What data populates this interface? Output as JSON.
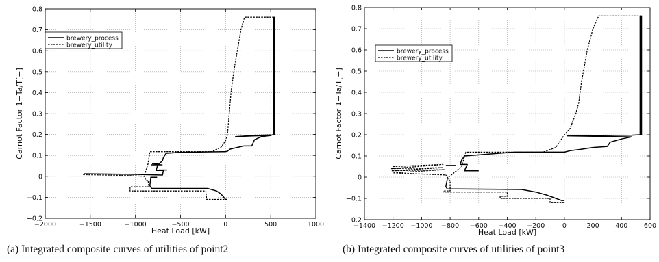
{
  "chart_data": [
    {
      "type": "line",
      "caption": "(a) Integrated composite curves of utilities of point2",
      "xlabel": "Heat Load [kW]",
      "ylabel": "Carnot Factor 1−Ta/T[−]",
      "xlim": [
        -2000,
        1000
      ],
      "ylim": [
        -0.2,
        0.8
      ],
      "xticks": [
        -2000,
        -1500,
        -1000,
        -500,
        0,
        500,
        1000
      ],
      "xtick_labels": [
        "−2000",
        "−1500",
        "−1000",
        "−500",
        "0",
        "500",
        "1000"
      ],
      "yticks": [
        -0.2,
        -0.1,
        0,
        0.1,
        0.2,
        0.3,
        0.4,
        0.5,
        0.6,
        0.7,
        0.8
      ],
      "ytick_labels": [
        "−0.2",
        "−0.1",
        "0",
        "0.1",
        "0.2",
        "0.3",
        "0.4",
        "0.5",
        "0.6",
        "0.7",
        "0.8"
      ],
      "grid": true,
      "legend_position": "upper-left",
      "series": [
        {
          "name": "brewery_process",
          "style": "solid",
          "points": [
            [
              -1570,
              0.012
            ],
            [
              -1000,
              0.009
            ],
            [
              -700,
              0.006
            ],
            [
              -690,
              0.028
            ],
            [
              -770,
              0.028
            ],
            [
              -750,
              0.06
            ],
            [
              -810,
              0.06
            ],
            [
              -740,
              0.058
            ],
            [
              -700,
              0.075
            ],
            [
              -690,
              0.09
            ],
            [
              -660,
              0.11
            ],
            [
              -500,
              0.115
            ],
            [
              -30,
              0.118
            ],
            [
              0,
              0.118
            ],
            [
              20,
              0.12
            ],
            [
              50,
              0.13
            ],
            [
              200,
              0.145
            ],
            [
              290,
              0.145
            ],
            [
              320,
              0.175
            ],
            [
              400,
              0.19
            ],
            [
              500,
              0.195
            ],
            [
              530,
              0.2
            ],
            [
              540,
              0.2
            ],
            [
              540,
              0.76
            ],
            [
              530,
              0.76
            ],
            [
              530,
              0.2
            ],
            [
              500,
              0.195
            ],
            [
              300,
              0.193
            ],
            [
              110,
              0.19
            ],
            [
              300,
              0.195
            ],
            [
              500,
              0.198
            ]
          ],
          "extra_segments": [
            [
              [
                -700,
                0.055
              ],
              [
                -830,
                0.055
              ]
            ],
            [
              [
                -650,
                0.03
              ],
              [
                -740,
                0.03
              ]
            ],
            [
              [
                -760,
                -0.005
              ],
              [
                -830,
                -0.005
              ],
              [
                -840,
                -0.045
              ],
              [
                -820,
                -0.058
              ],
              [
                -200,
                -0.058
              ],
              [
                -100,
                -0.07
              ],
              [
                -50,
                -0.085
              ],
              [
                -20,
                -0.1
              ],
              [
                0,
                -0.11
              ],
              [
                20,
                -0.11
              ]
            ]
          ]
        },
        {
          "name": "brewery_utility",
          "style": "dashed",
          "points": [
            [
              -1580,
              0.008
            ],
            [
              -1100,
              0.004
            ],
            [
              -900,
              0.0
            ],
            [
              -880,
              -0.02
            ],
            [
              -860,
              -0.02
            ],
            [
              -850,
              -0.05
            ],
            [
              -1060,
              -0.05
            ],
            [
              -1060,
              -0.07
            ],
            [
              -860,
              -0.07
            ],
            [
              -220,
              -0.07
            ],
            [
              -210,
              -0.11
            ],
            [
              20,
              -0.11
            ]
          ],
          "extra_segments": [
            [
              [
                -900,
                0.005
              ],
              [
                -860,
                0.06
              ],
              [
                -840,
                0.118
              ],
              [
                -500,
                0.118
              ],
              [
                -450,
                0.118
              ],
              [
                -300,
                0.118
              ],
              [
                -150,
                0.118
              ],
              [
                -50,
                0.14
              ],
              [
                0,
                0.17
              ],
              [
                20,
                0.2
              ],
              [
                40,
                0.3
              ],
              [
                60,
                0.4
              ],
              [
                90,
                0.5
              ],
              [
                130,
                0.6
              ],
              [
                170,
                0.7
              ],
              [
                210,
                0.76
              ],
              [
                540,
                0.76
              ]
            ]
          ]
        }
      ]
    },
    {
      "type": "line",
      "caption": "(b) Integrated composite curves of utilities of point3",
      "xlabel": "Heat Load [kW]",
      "ylabel": "Carnot Factor 1−Ta/T[−]",
      "xlim": [
        -1400,
        600
      ],
      "ylim": [
        -0.2,
        0.8
      ],
      "xticks": [
        -1400,
        -1200,
        -1000,
        -800,
        -600,
        -400,
        -200,
        0,
        200,
        400,
        600
      ],
      "xtick_labels": [
        "−1400",
        "−1200",
        "−1000",
        "−800",
        "−600",
        "−400",
        "−200",
        "0",
        "200",
        "400",
        "600"
      ],
      "yticks": [
        -0.2,
        -0.1,
        0,
        0.1,
        0.2,
        0.3,
        0.4,
        0.5,
        0.6,
        0.7,
        0.8
      ],
      "ytick_labels": [
        "−0.2",
        "−0.1",
        "0",
        "0.1",
        "0.2",
        "0.3",
        "0.4",
        "0.5",
        "0.6",
        "0.7",
        "0.8"
      ],
      "grid": true,
      "legend_position": "upper-left",
      "series": [
        {
          "name": "brewery_process",
          "style": "solid",
          "points": [
            [
              -600,
              0.03
            ],
            [
              -700,
              0.03
            ],
            [
              -680,
              0.06
            ],
            [
              -730,
              0.06
            ],
            [
              -720,
              0.08
            ],
            [
              -700,
              0.1
            ],
            [
              -600,
              0.105
            ],
            [
              -350,
              0.118
            ],
            [
              0,
              0.118
            ],
            [
              40,
              0.125
            ],
            [
              100,
              0.13
            ],
            [
              200,
              0.14
            ],
            [
              300,
              0.145
            ],
            [
              320,
              0.165
            ],
            [
              400,
              0.18
            ],
            [
              470,
              0.19
            ],
            [
              20,
              0.195
            ],
            [
              470,
              0.198
            ],
            [
              530,
              0.2
            ],
            [
              540,
              0.2
            ],
            [
              540,
              0.76
            ],
            [
              530,
              0.76
            ],
            [
              530,
              0.2
            ]
          ],
          "extra_segments": [
            [
              [
                -760,
                0.055
              ],
              [
                -830,
                0.055
              ]
            ],
            [
              [
                -820,
                -0.01
              ],
              [
                -830,
                -0.045
              ],
              [
                -820,
                -0.055
              ],
              [
                -300,
                -0.058
              ],
              [
                -200,
                -0.07
              ],
              [
                -120,
                -0.085
              ],
              [
                -60,
                -0.1
              ],
              [
                -20,
                -0.11
              ],
              [
                0,
                -0.11
              ]
            ]
          ]
        },
        {
          "name": "brewery_utility",
          "style": "dashed",
          "points": [
            [
              -1200,
              0.05
            ],
            [
              -850,
              0.06
            ],
            [
              -1210,
              0.04
            ],
            [
              -850,
              0.045
            ],
            [
              -1210,
              0.03
            ],
            [
              -840,
              0.035
            ],
            [
              -1200,
              0.02
            ],
            [
              -830,
              0.01
            ],
            [
              -800,
              -0.02
            ],
            [
              -800,
              -0.065
            ],
            [
              -850,
              -0.065
            ],
            [
              -850,
              -0.07
            ],
            [
              -400,
              -0.07
            ],
            [
              -400,
              -0.09
            ],
            [
              -450,
              -0.09
            ],
            [
              -450,
              -0.1
            ],
            [
              -100,
              -0.1
            ],
            [
              -100,
              -0.12
            ],
            [
              0,
              -0.12
            ]
          ],
          "extra_segments": [
            [
              [
                -810,
                0.0
              ],
              [
                -720,
                0.05
              ],
              [
                -690,
                0.118
              ],
              [
                -300,
                0.118
              ],
              [
                -150,
                0.118
              ],
              [
                -60,
                0.14
              ],
              [
                -20,
                0.18
              ],
              [
                0,
                0.2
              ],
              [
                40,
                0.23
              ],
              [
                80,
                0.3
              ],
              [
                100,
                0.35
              ],
              [
                120,
                0.45
              ],
              [
                160,
                0.6
              ],
              [
                200,
                0.7
              ],
              [
                240,
                0.76
              ],
              [
                540,
                0.76
              ]
            ]
          ]
        }
      ]
    }
  ],
  "captions": {
    "a": "(a) Integrated composite curves of utilities of point2",
    "b": "(b) Integrated composite curves of utilities of point3"
  }
}
